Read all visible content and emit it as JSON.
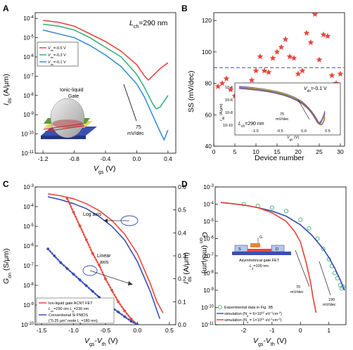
{
  "chart_data": [
    {
      "panel": "A",
      "type": "line",
      "annotation": "L",
      "annotation_sub": "ch",
      "annotation_val": "=290 nm",
      "xlabel": "V",
      "xlabel_sub": "gs",
      "xlabel_unit": " (V)",
      "ylabel": "I",
      "ylabel_sub": "ds",
      "ylabel_unit": " (A/μm)",
      "xlim": [
        -1.3,
        0.5
      ],
      "ylim_log": [
        -11,
        -3.7
      ],
      "xticks": [
        "-1.2",
        "-0.8",
        "-0.4",
        "0.0",
        "0.4"
      ],
      "xtick_values": [
        -1.2,
        -0.8,
        -0.4,
        0.0,
        0.4
      ],
      "yticks": [
        -11,
        -10,
        -9,
        -8,
        -7,
        -6,
        -5,
        -4
      ],
      "legend": [
        "V_ds=-0.5 V",
        "V_ds=-0.3 V",
        "V_ds=-0.1 V"
      ],
      "legend_prefix": "V",
      "legend_sub": "ds",
      "legend_vals": [
        "=-0.5 V",
        "=-0.3 V",
        "=-0.1 V"
      ],
      "inset_label": "Ionic-liquid\nGate",
      "inset_label_l1": "Ionic-liquid",
      "inset_label_l2": "Gate",
      "slope_label_1": "75",
      "slope_label_2": "mV/dec",
      "series": [
        {
          "name": "V_ds=-0.5 V",
          "color": "#e8473f",
          "x": [
            -1.2,
            -1.0,
            -0.8,
            -0.6,
            -0.4,
            -0.2,
            0.0,
            0.1,
            0.15,
            0.2,
            0.3,
            0.4
          ],
          "logy": [
            -4.1,
            -4.2,
            -4.4,
            -4.8,
            -5.2,
            -5.7,
            -6.4,
            -7.0,
            -7.2,
            -7.0,
            -6.6,
            -6.3
          ]
        },
        {
          "name": "V_ds=-0.3 V",
          "color": "#3cb07e",
          "x": [
            -1.2,
            -1.0,
            -0.8,
            -0.6,
            -0.4,
            -0.2,
            0.0,
            0.1,
            0.2,
            0.25,
            0.3,
            0.4
          ],
          "logy": [
            -4.3,
            -4.4,
            -4.6,
            -5.0,
            -5.5,
            -6.0,
            -6.9,
            -7.6,
            -8.4,
            -8.7,
            -8.6,
            -8.0
          ]
        },
        {
          "name": "V_ds=-0.1 V",
          "color": "#3d8fd6",
          "x": [
            -1.2,
            -1.0,
            -0.8,
            -0.6,
            -0.4,
            -0.2,
            0.0,
            0.1,
            0.2,
            0.3,
            0.35,
            0.4
          ],
          "logy": [
            -4.6,
            -4.8,
            -5.0,
            -5.4,
            -5.9,
            -6.5,
            -7.4,
            -8.1,
            -9.0,
            -9.9,
            -10.3,
            -9.8
          ]
        }
      ]
    },
    {
      "panel": "B",
      "type": "scatter",
      "xlabel": "Device number",
      "ylabel": "SS (mV/dec)",
      "xlim": [
        0,
        31
      ],
      "ylim": [
        40,
        125
      ],
      "xticks": [
        "0",
        "5",
        "10",
        "15",
        "20",
        "25",
        "30"
      ],
      "xtick_values": [
        0,
        5,
        10,
        15,
        20,
        25,
        30
      ],
      "yticks": [
        "40",
        "60",
        "80",
        "100",
        "120"
      ],
      "ytick_values": [
        40,
        60,
        80,
        100,
        120
      ],
      "reference_line": 90,
      "marker_color": "#e8473f",
      "series": [
        {
          "name": "",
          "x": [
            1,
            2,
            3,
            4,
            5,
            6,
            7,
            8,
            9,
            10,
            11,
            12,
            13,
            14,
            15,
            16,
            17,
            18,
            19,
            20,
            21,
            22,
            23,
            24,
            25,
            26,
            27,
            28,
            29,
            30
          ],
          "y": [
            78,
            80,
            83,
            76,
            72,
            75,
            66,
            74,
            82,
            88,
            97,
            88,
            87,
            96,
            100,
            103,
            108,
            97,
            96,
            86,
            88,
            112,
            106,
            124,
            95,
            111,
            110,
            85,
            80,
            86
          ]
        }
      ],
      "inset": {
        "ylabel": "I",
        "ylabel_sub": "ds",
        "ylabel_unit": " (A/μm)",
        "xlabel": "V",
        "xlabel_sub": "gs",
        "xlabel_unit": " (V)",
        "annotation": "V",
        "annotation_sub": "ds",
        "annotation_val": "=-0.1 V",
        "length_label": "L",
        "length_label_sub": "ch",
        "length_label_val": "=290 nm",
        "slope_label_1": "75",
        "slope_label_2": "mV/dec",
        "xticks": [
          "-1.0",
          "-0.5",
          "0.0",
          "0.5"
        ],
        "yticks": [
          "10-4",
          "10-6",
          "10-8",
          "10-10"
        ]
      }
    },
    {
      "panel": "C",
      "type": "line",
      "xlabel": "V",
      "xlabel_sub": "gs",
      "xlabel_mid": "-V",
      "xlabel_sub2": "th",
      "xlabel_unit": " (V)",
      "ylabel_left": "G",
      "ylabel_left_sub": "on",
      "ylabel_left_unit": " (S/μm)",
      "ylabel_right": "G",
      "ylabel_right_sub": "on",
      "ylabel_right_unit": " (mS/μm)",
      "xlim": [
        -1.6,
        0.6
      ],
      "ylim_left_log": [
        -10,
        -3
      ],
      "ylim_right": [
        0,
        0.6
      ],
      "xticks": [
        "-1.5",
        "-1.0",
        "-0.5",
        "0.0",
        "0.5"
      ],
      "xtick_values": [
        -1.5,
        -1.0,
        -0.5,
        0.0,
        0.5
      ],
      "yticks_right": [
        "0.0",
        "0.1",
        "0.2",
        "0.3",
        "0.4",
        "0.5",
        "0.6"
      ],
      "ytick_right_values": [
        0.0,
        0.1,
        0.2,
        0.3,
        0.4,
        0.5,
        0.6
      ],
      "log_axis_label": "Log axis",
      "linear_axis_label_1": "Linear",
      "linear_axis_label_2": "axis",
      "legend": [
        {
          "label": "Ion-liquid gate ACNT FET",
          "sub": "L",
          "sub2": "ch",
          "sub_val": "=290 nm  L",
          "sub3": "g",
          "sub_val2": "=230 nm",
          "color": "#e8473f"
        },
        {
          "label": "Conventional Si PMOS",
          "sub": "(\"0.25 μm\" node  L",
          "sub2": "g",
          "sub_val": "=180 nm)",
          "sub3": "",
          "sub_val2": "",
          "color": "#3a4fb0"
        }
      ],
      "series": [
        {
          "name": "Ion-liquid gate ACNT FET (log)",
          "color": "#e8473f",
          "style": "solid",
          "x": [
            -1.4,
            -1.2,
            -1.0,
            -0.8,
            -0.6,
            -0.4,
            -0.2,
            0.0,
            0.2,
            0.3,
            0.4
          ],
          "logy": [
            -3.35,
            -3.45,
            -3.6,
            -3.85,
            -4.2,
            -4.7,
            -5.4,
            -6.4,
            -7.9,
            -8.8,
            -9.4
          ]
        },
        {
          "name": "Conventional Si PMOS (log)",
          "color": "#3a4fb0",
          "style": "solid",
          "x": [
            -1.4,
            -1.2,
            -1.0,
            -0.8,
            -0.6,
            -0.4,
            -0.2,
            0.0,
            0.2,
            0.35
          ],
          "logy": [
            -3.5,
            -3.65,
            -3.85,
            -4.1,
            -4.5,
            -5.0,
            -5.7,
            -6.8,
            -8.3,
            -9.7
          ]
        },
        {
          "name": "Ion-liquid gate ACNT FET (linear)",
          "color": "#e8473f",
          "style": "dotted",
          "x": [
            -1.1,
            -1.0,
            -0.9,
            -0.8,
            -0.7,
            -0.6,
            -0.5,
            -0.4,
            -0.3,
            -0.2,
            -0.1,
            0.0
          ],
          "y": [
            0.55,
            0.49,
            0.43,
            0.37,
            0.31,
            0.26,
            0.2,
            0.15,
            0.1,
            0.06,
            0.025,
            0.0
          ]
        },
        {
          "name": "Conventional Si PMOS (linear)",
          "color": "#3a4fb0",
          "style": "dotted",
          "x": [
            -1.4,
            -1.3,
            -1.2,
            -1.1,
            -1.0,
            -0.9,
            -0.8,
            -0.7,
            -0.6,
            -0.5,
            -0.4,
            -0.3,
            -0.2,
            -0.1,
            0.0
          ],
          "y": [
            0.33,
            0.3,
            0.27,
            0.245,
            0.22,
            0.195,
            0.17,
            0.145,
            0.12,
            0.1,
            0.075,
            0.055,
            0.035,
            0.015,
            0.0
          ]
        }
      ]
    },
    {
      "panel": "D",
      "type": "line",
      "xlabel": "V",
      "xlabel_sub": "gs",
      "xlabel_mid": "-V",
      "xlabel_sub2": "th",
      "xlabel_unit": " (V)",
      "ylabel": "I",
      "ylabel_sub": "ds",
      "ylabel_unit": " (A/μm)",
      "xlim": [
        -3,
        1.6
      ],
      "ylim_log": [
        -11,
        -3
      ],
      "xticks": [
        "-2",
        "-1",
        "0",
        "1"
      ],
      "xtick_values": [
        -2,
        -1,
        0,
        1
      ],
      "inset_title": "Asymmetrical gate FET",
      "inset_sub_label": "L",
      "inset_sub_sub": "g",
      "inset_sub_val": "=100 nm",
      "inset_labels": {
        "s": "S",
        "d": "D",
        "g": "G"
      },
      "slope_label_70_1": "70",
      "slope_label_70_2": "mV/dec",
      "slope_label_190_1": "190",
      "slope_label_190_2": "mV/dec",
      "legend": [
        {
          "label": "Experimental data in Fig. 3B",
          "color": "#3cb07e",
          "marker": "circle"
        },
        {
          "label": "simulation (N",
          "sub": "it",
          "val": " = 6×10",
          "sup": "12",
          "unit": " eV",
          "sup2": "-1",
          "unit2": "cm",
          "sup3": "-2",
          "tail": ")",
          "color": "#3a4fb0"
        },
        {
          "label": "simulation (N",
          "sub": "it",
          "val": " = 1×10",
          "sup": "11",
          "unit": " eV",
          "sup2": "-1",
          "unit2": "cm",
          "sup3": "-2",
          "tail": ")",
          "color": "#e8473f"
        }
      ],
      "series": [
        {
          "name": "Experimental data in Fig. 3B",
          "color": "#3cb07e",
          "style": "markers",
          "x": [
            -2.0,
            -1.5,
            -1.0,
            -0.5,
            0.0,
            0.3,
            0.6,
            0.8,
            1.0,
            1.1,
            1.2,
            1.3,
            1.4,
            1.45,
            1.5
          ],
          "logy": [
            -4.0,
            -4.1,
            -4.2,
            -4.4,
            -4.9,
            -5.4,
            -6.0,
            -6.6,
            -7.2,
            -7.6,
            -8.0,
            -8.3,
            -8.7,
            -8.9,
            -8.8
          ]
        },
        {
          "name": "simulation Nit=6e12",
          "color": "#3a4fb0",
          "style": "solid",
          "x": [
            -2.8,
            -2.5,
            -2.0,
            -1.5,
            -1.0,
            -0.5,
            0.0,
            0.4,
            0.8,
            1.0,
            1.2,
            1.4,
            1.55
          ],
          "logy": [
            -3.9,
            -3.95,
            -4.05,
            -4.2,
            -4.4,
            -4.7,
            -5.2,
            -5.8,
            -6.6,
            -7.1,
            -7.7,
            -8.4,
            -9.0
          ]
        },
        {
          "name": "simulation Nit=1e11",
          "color": "#e8473f",
          "style": "solid",
          "x": [
            -2.8,
            -2.5,
            -2.0,
            -1.5,
            -1.0,
            -0.5,
            -0.2,
            0.0,
            0.2,
            0.35,
            0.45,
            0.55
          ],
          "logy": [
            -3.9,
            -3.95,
            -4.05,
            -4.2,
            -4.5,
            -5.0,
            -5.6,
            -6.2,
            -7.4,
            -8.5,
            -9.5,
            -10.3
          ]
        }
      ]
    }
  ]
}
